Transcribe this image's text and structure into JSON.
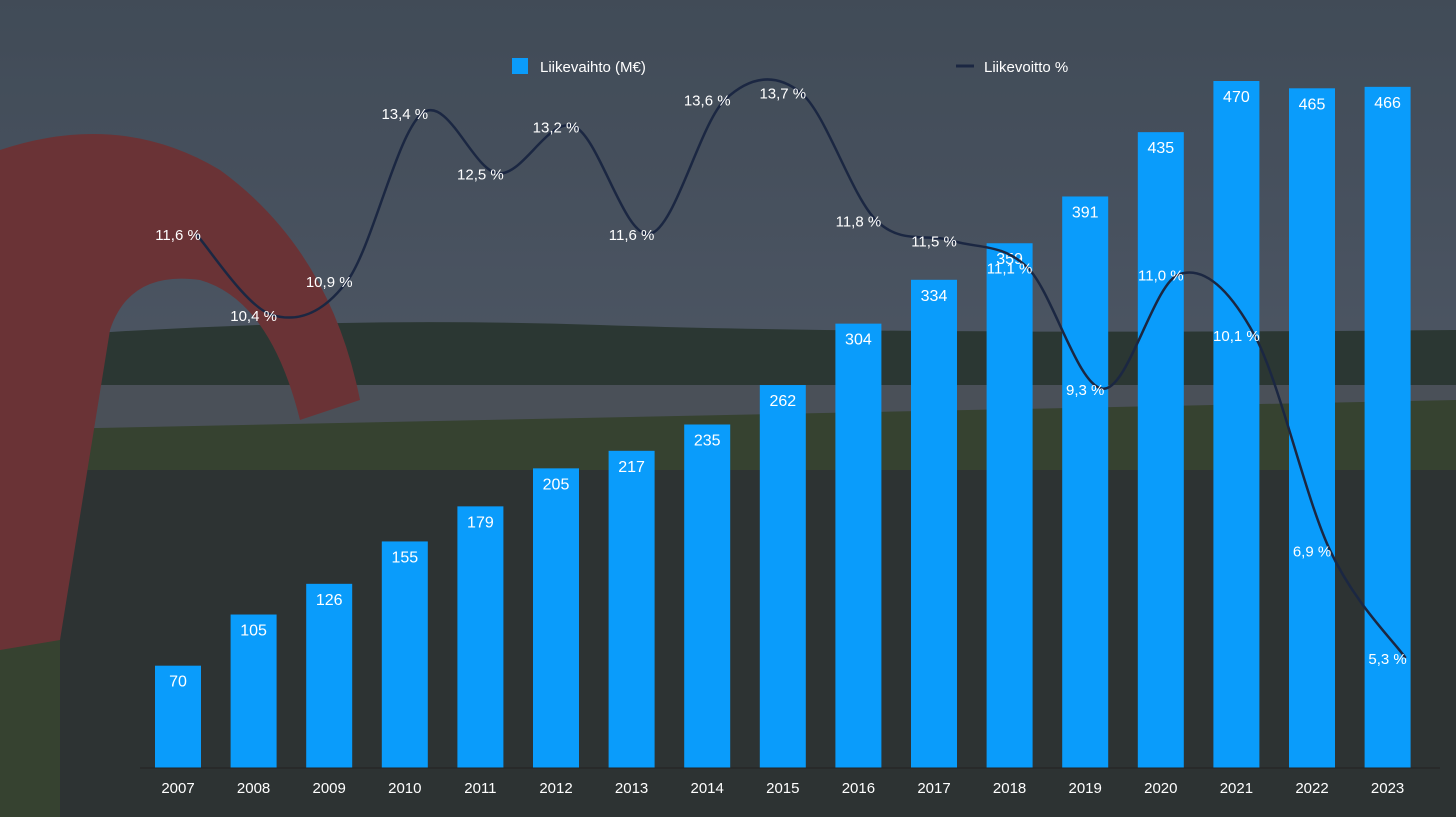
{
  "colors": {
    "bar": "#0a9cfb",
    "line": "#1b2742",
    "text": "#ffffff"
  },
  "chart_data": {
    "type": "bar",
    "categories": [
      "2007",
      "2008",
      "2009",
      "2010",
      "2011",
      "2012",
      "2013",
      "2014",
      "2015",
      "2016",
      "2017",
      "2018",
      "2019",
      "2020",
      "2021",
      "2022",
      "2023"
    ],
    "series": [
      {
        "name": "Liikevaihto (M€)",
        "type": "bar",
        "values": [
          70,
          105,
          126,
          155,
          179,
          205,
          217,
          235,
          262,
          304,
          334,
          359,
          391,
          435,
          470,
          465,
          466
        ],
        "labels": [
          "70",
          "105",
          "126",
          "155",
          "179",
          "205",
          "217",
          "235",
          "262",
          "304",
          "334",
          "359",
          "391",
          "435",
          "470",
          "465",
          "466"
        ]
      },
      {
        "name": "Liikevoitto %",
        "type": "line",
        "values": [
          11.6,
          10.4,
          10.9,
          13.4,
          12.5,
          13.2,
          11.6,
          13.6,
          13.7,
          11.8,
          11.5,
          11.1,
          9.3,
          11.0,
          10.1,
          6.9,
          5.3
        ],
        "labels": [
          "11,6 %",
          "10,4 %",
          "10,9 %",
          "13,4 %",
          "12,5 %",
          "13,2 %",
          "11,6 %",
          "13,6 %",
          "13,7 %",
          "11,8 %",
          "11,5 %",
          "11,1 %",
          "9,3 %",
          "11,0 %",
          "10,1 %",
          "6,9 %",
          "5,3 %"
        ]
      }
    ],
    "legend_position": "top",
    "grid": false
  }
}
